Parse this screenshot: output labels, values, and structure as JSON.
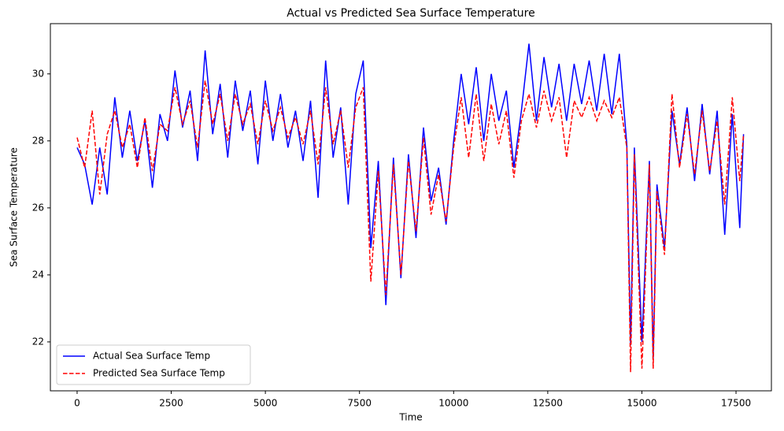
{
  "chart_data": {
    "type": "line",
    "title": "Actual vs Predicted Sea Surface Temperature",
    "x_label": "Time",
    "y_label": "Sea Surface Temperature",
    "x": [
      0,
      200,
      400,
      600,
      800,
      1000,
      1200,
      1400,
      1600,
      1800,
      2000,
      2200,
      2400,
      2600,
      2800,
      3000,
      3200,
      3400,
      3600,
      3800,
      4000,
      4200,
      4400,
      4600,
      4800,
      5000,
      5200,
      5400,
      5600,
      5800,
      6000,
      6200,
      6400,
      6600,
      6800,
      7000,
      7200,
      7400,
      7600,
      7800,
      8000,
      8200,
      8400,
      8600,
      8800,
      9000,
      9200,
      9400,
      9600,
      9800,
      10000,
      10200,
      10400,
      10600,
      10800,
      11000,
      11200,
      11400,
      11600,
      11800,
      12000,
      12200,
      12400,
      12600,
      12800,
      13000,
      13200,
      13400,
      13600,
      13800,
      14000,
      14200,
      14400,
      14600,
      14700,
      14800,
      15000,
      15200,
      15300,
      15400,
      15600,
      15800,
      16000,
      16200,
      16400,
      16600,
      16800,
      17000,
      17200,
      17400,
      17600,
      17700
    ],
    "series": [
      {
        "name": "Actual Sea Surface Temp",
        "color": "#0000ff",
        "dashed": false,
        "values": [
          27.8,
          27.3,
          26.1,
          27.8,
          26.4,
          29.3,
          27.5,
          28.9,
          27.4,
          28.6,
          26.6,
          28.8,
          28.0,
          30.1,
          28.4,
          29.5,
          27.4,
          30.7,
          28.2,
          29.7,
          27.5,
          29.8,
          28.3,
          29.5,
          27.3,
          29.8,
          28.0,
          29.4,
          27.8,
          28.9,
          27.4,
          29.2,
          26.3,
          30.4,
          27.5,
          29.0,
          26.1,
          29.4,
          30.4,
          24.8,
          27.4,
          23.1,
          27.5,
          23.9,
          27.6,
          25.1,
          28.4,
          26.2,
          27.2,
          25.5,
          28.0,
          30.0,
          28.5,
          30.2,
          28.0,
          30.0,
          28.6,
          29.5,
          27.2,
          28.9,
          30.9,
          28.6,
          30.5,
          29.0,
          30.3,
          28.6,
          30.3,
          29.1,
          30.4,
          28.9,
          30.6,
          28.8,
          30.6,
          27.9,
          21.9,
          27.8,
          22.0,
          27.4,
          21.5,
          26.7,
          24.8,
          28.9,
          27.3,
          29.0,
          26.8,
          29.1,
          27.0,
          28.9,
          25.2,
          28.8,
          25.4,
          28.2
        ]
      },
      {
        "name": "Predicted Sea Surface Temp",
        "color": "#ff0000",
        "dashed": true,
        "values": [
          28.1,
          27.2,
          28.9,
          26.4,
          28.2,
          28.9,
          27.8,
          28.5,
          27.2,
          28.7,
          27.1,
          28.5,
          28.3,
          29.6,
          28.5,
          29.2,
          27.8,
          29.8,
          28.5,
          29.4,
          28.0,
          29.4,
          28.5,
          29.1,
          27.9,
          29.2,
          28.3,
          29.0,
          28.1,
          28.7,
          27.9,
          28.9,
          27.3,
          29.6,
          27.9,
          28.9,
          27.2,
          29.0,
          29.6,
          23.8,
          27.1,
          23.4,
          27.3,
          24.0,
          27.4,
          25.3,
          28.1,
          25.8,
          27.0,
          25.6,
          27.8,
          29.3,
          27.5,
          29.4,
          27.4,
          29.1,
          27.9,
          28.9,
          26.9,
          28.6,
          29.4,
          28.4,
          29.5,
          28.6,
          29.3,
          27.5,
          29.2,
          28.7,
          29.3,
          28.6,
          29.2,
          28.7,
          29.3,
          27.8,
          21.1,
          27.6,
          21.2,
          27.3,
          21.2,
          26.5,
          24.6,
          29.4,
          27.2,
          28.8,
          27.0,
          28.9,
          27.1,
          28.6,
          26.1,
          29.3,
          26.8,
          28.2
        ]
      }
    ],
    "xlim": [
      -710,
      18440
    ],
    "ylim": [
      20.54,
      31.5
    ],
    "xticks": [
      0,
      2500,
      5000,
      7500,
      10000,
      12500,
      15000,
      17500
    ],
    "yticks": [
      22,
      24,
      26,
      28,
      30
    ],
    "legend": "lower left"
  }
}
